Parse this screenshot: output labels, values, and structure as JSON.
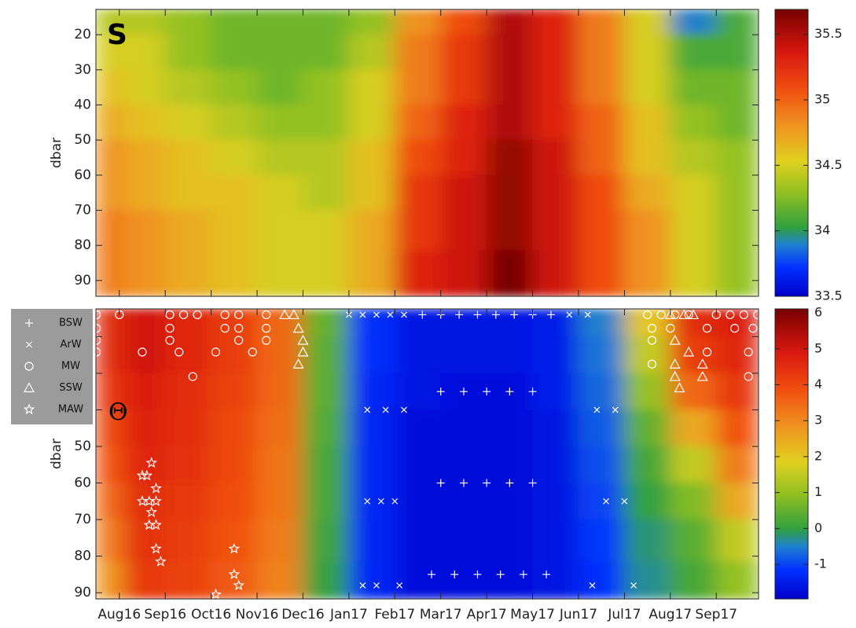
{
  "chart_data": [
    {
      "type": "heatmap",
      "title": "S",
      "ylabel": "dbar",
      "x": [
        -0.25,
        0.5,
        1.5,
        2.5,
        3.5,
        4.5,
        5.5,
        6.5,
        7.5,
        8.5,
        9.5,
        10.5,
        11.5,
        12.5,
        13.5
      ],
      "depth": [
        15,
        25,
        35,
        45,
        55,
        65,
        75,
        88
      ],
      "values": [
        [
          34.4,
          34.4,
          34.3,
          34.2,
          34.2,
          34.2,
          34.3,
          34.8,
          35.1,
          35.5,
          35.3,
          34.9,
          34.5,
          33.9,
          34.1
        ],
        [
          34.5,
          34.5,
          34.3,
          34.2,
          34.2,
          34.2,
          34.4,
          34.9,
          35.2,
          35.5,
          35.3,
          34.9,
          34.5,
          34.1,
          34.1
        ],
        [
          34.6,
          34.5,
          34.4,
          34.3,
          34.2,
          34.3,
          34.5,
          34.9,
          35.2,
          35.5,
          35.3,
          34.9,
          34.5,
          34.2,
          34.2
        ],
        [
          34.7,
          34.6,
          34.5,
          34.4,
          34.3,
          34.3,
          34.5,
          35.0,
          35.3,
          35.5,
          35.3,
          35.0,
          34.6,
          34.3,
          34.2
        ],
        [
          34.8,
          34.7,
          34.6,
          34.5,
          34.4,
          34.4,
          34.6,
          35.1,
          35.3,
          35.6,
          35.4,
          35.0,
          34.6,
          34.4,
          34.3
        ],
        [
          34.8,
          34.7,
          34.6,
          34.6,
          34.5,
          34.4,
          34.6,
          35.2,
          35.4,
          35.6,
          35.4,
          35.1,
          34.7,
          34.5,
          34.3
        ],
        [
          34.9,
          34.8,
          34.7,
          34.6,
          34.5,
          34.5,
          34.7,
          35.2,
          35.4,
          35.6,
          35.4,
          35.1,
          34.8,
          34.5,
          34.3
        ],
        [
          34.9,
          34.8,
          34.7,
          34.6,
          34.5,
          34.5,
          34.7,
          35.3,
          35.4,
          35.7,
          35.4,
          35.1,
          34.8,
          34.5,
          34.3
        ]
      ],
      "xlim": [
        -0.51,
        13.92
      ],
      "xticks": [
        0,
        1,
        2,
        3,
        4,
        5,
        6,
        7,
        8,
        9,
        10,
        11,
        12,
        13
      ],
      "ylim": [
        12.8,
        94.5
      ],
      "y_reversed": true,
      "yticks": [
        20,
        30,
        40,
        50,
        60,
        70,
        80,
        90
      ],
      "colorbar_lim": [
        33.5,
        35.69
      ],
      "colorbar_ticks": [
        33.5,
        34,
        34.5,
        35,
        35.5
      ],
      "colormap": [
        [
          0,
          "#0000c8"
        ],
        [
          0.1,
          "#0030ff"
        ],
        [
          0.18,
          "#2080d0"
        ],
        [
          0.24,
          "#30a040"
        ],
        [
          0.36,
          "#90c020"
        ],
        [
          0.47,
          "#e0d020"
        ],
        [
          0.6,
          "#f09020"
        ],
        [
          0.72,
          "#f05010"
        ],
        [
          0.85,
          "#d81810"
        ],
        [
          1,
          "#780000"
        ]
      ]
    },
    {
      "type": "heatmap",
      "title": "Θ",
      "ylabel": "dbar",
      "x": [
        -0.25,
        0.5,
        1.5,
        2.5,
        3.5,
        4.5,
        5.5,
        6.5,
        7.5,
        8.5,
        9.5,
        10.5,
        11.5,
        12.5,
        13.5
      ],
      "depth": [
        15,
        25,
        35,
        45,
        55,
        65,
        75,
        88
      ],
      "values": [
        [
          4.5,
          5.0,
          4.6,
          4.2,
          3.5,
          0.5,
          -1.2,
          -1.6,
          -1.6,
          -1.6,
          -1.5,
          -0.5,
          2.0,
          4.5,
          4.8
        ],
        [
          4.5,
          5.0,
          4.6,
          4.2,
          3.5,
          0.4,
          -1.2,
          -1.6,
          -1.6,
          -1.6,
          -1.5,
          -0.6,
          1.5,
          4.2,
          4.6
        ],
        [
          4.3,
          4.8,
          4.5,
          4.1,
          3.5,
          0.4,
          -1.3,
          -1.6,
          -1.7,
          -1.7,
          -1.5,
          -0.7,
          1.0,
          3.5,
          4.3
        ],
        [
          4.0,
          4.7,
          4.5,
          4.0,
          3.4,
          0.3,
          -1.3,
          -1.7,
          -1.7,
          -1.7,
          -1.6,
          -0.8,
          0.5,
          2.5,
          3.8
        ],
        [
          3.8,
          4.6,
          4.4,
          4.0,
          3.3,
          0.2,
          -1.3,
          -1.7,
          -1.7,
          -1.7,
          -1.6,
          -0.9,
          0.2,
          1.5,
          3.2
        ],
        [
          3.5,
          4.5,
          4.3,
          3.9,
          3.3,
          0.2,
          -1.3,
          -1.7,
          -1.7,
          -1.7,
          -1.6,
          -1.0,
          0.0,
          0.8,
          2.5
        ],
        [
          3.2,
          4.4,
          4.2,
          3.8,
          3.2,
          0.1,
          -1.3,
          -1.7,
          -1.7,
          -1.7,
          -1.6,
          -1.1,
          -0.2,
          0.4,
          1.5
        ],
        [
          2.8,
          4.3,
          4.1,
          3.7,
          3.1,
          0.0,
          -1.3,
          -1.7,
          -1.7,
          -1.7,
          -1.6,
          -1.2,
          -0.3,
          0.2,
          1.0
        ]
      ],
      "xlim": [
        -0.51,
        13.92
      ],
      "xticks": [
        {
          "value": 0,
          "label": "Aug16"
        },
        {
          "value": 1,
          "label": "Sep16"
        },
        {
          "value": 2,
          "label": "Oct16"
        },
        {
          "value": 3,
          "label": "Nov16"
        },
        {
          "value": 4,
          "label": "Dec16"
        },
        {
          "value": 5,
          "label": "Jan17"
        },
        {
          "value": 6,
          "label": "Feb17"
        },
        {
          "value": 7,
          "label": "Mar17"
        },
        {
          "value": 8,
          "label": "Apr17"
        },
        {
          "value": 9,
          "label": "May17"
        },
        {
          "value": 10,
          "label": "Jun17"
        },
        {
          "value": 11,
          "label": "Jul17"
        },
        {
          "value": 12,
          "label": "Aug17"
        },
        {
          "value": 13,
          "label": "Sep17"
        }
      ],
      "ylim": [
        12.4,
        91.7
      ],
      "y_reversed": true,
      "yticks": [
        20,
        30,
        40,
        50,
        60,
        70,
        80,
        90
      ],
      "colorbar_lim": [
        -1.96,
        6.11
      ],
      "colorbar_ticks": [
        -1,
        0,
        1,
        2,
        3,
        4,
        5,
        6
      ],
      "colormap": [
        [
          0,
          "#0000c8"
        ],
        [
          0.1,
          "#0030ff"
        ],
        [
          0.18,
          "#2080d0"
        ],
        [
          0.24,
          "#30a040"
        ],
        [
          0.36,
          "#90c020"
        ],
        [
          0.47,
          "#e0d020"
        ],
        [
          0.6,
          "#f09020"
        ],
        [
          0.72,
          "#f05010"
        ],
        [
          0.85,
          "#d81810"
        ],
        [
          1,
          "#780000"
        ]
      ],
      "legend": "left",
      "series": [
        {
          "name": "BSW",
          "marker": "plus",
          "color": "#ffffff",
          "x": [
            6.6,
            7.0,
            7.4,
            7.8,
            8.2,
            8.6,
            9.0,
            9.4,
            7.0,
            7.5,
            8.0,
            8.5,
            9.0,
            7.0,
            7.5,
            8.0,
            8.5,
            9.0,
            6.8,
            7.3,
            7.8,
            8.3,
            8.8,
            9.3
          ],
          "y": [
            14,
            14,
            14,
            14,
            14,
            14,
            14,
            14,
            35,
            35,
            35,
            35,
            35,
            60,
            60,
            60,
            60,
            60,
            85,
            85,
            85,
            85,
            85,
            85
          ]
        },
        {
          "name": "ArW",
          "marker": "cross",
          "color": "#ffffff",
          "x": [
            5.0,
            5.3,
            5.6,
            5.9,
            6.2,
            9.8,
            10.2,
            5.4,
            5.8,
            6.2,
            10.4,
            10.8,
            5.4,
            5.7,
            6.0,
            10.6,
            11.0,
            5.3,
            5.6,
            6.1,
            10.3,
            11.2
          ],
          "y": [
            14,
            14,
            14,
            14,
            14,
            14,
            14,
            40,
            40,
            40,
            40,
            40,
            65,
            65,
            65,
            65,
            65,
            88,
            88,
            88,
            88,
            88
          ]
        },
        {
          "name": "MW",
          "marker": "circle",
          "color": "#ffffff",
          "x": [
            -0.5,
            0.0,
            1.1,
            1.4,
            1.7,
            2.3,
            2.6,
            3.2,
            -0.5,
            1.1,
            2.3,
            2.6,
            3.2,
            -0.5,
            1.1,
            2.6,
            3.2,
            -0.5,
            0.5,
            1.3,
            2.1,
            2.9,
            1.6,
            11.5,
            11.8,
            12.1,
            12.4,
            13.0,
            13.3,
            13.6,
            13.9,
            11.6,
            12.0,
            12.8,
            13.4,
            13.8,
            11.6,
            12.8,
            13.7,
            11.6,
            13.7
          ],
          "y": [
            14,
            14,
            14,
            14,
            14,
            14,
            14,
            14,
            17.7,
            17.7,
            17.7,
            17.7,
            17.7,
            21,
            21,
            21,
            21,
            24.2,
            24.2,
            24.2,
            24.2,
            24.2,
            30.9,
            14,
            14,
            14,
            14,
            14,
            14,
            14,
            14,
            17.7,
            17.7,
            17.7,
            17.7,
            17.7,
            21,
            24.2,
            24.2,
            27.5,
            30.9
          ]
        },
        {
          "name": "SSW",
          "marker": "triangle",
          "color": "#ffffff",
          "x": [
            3.6,
            3.8,
            3.9,
            4.0,
            4.0,
            3.9,
            12.0,
            12.3,
            12.5,
            12.1,
            12.4,
            12.1,
            12.7,
            12.1,
            12.7,
            12.2
          ],
          "y": [
            14,
            14,
            17.7,
            21,
            24.2,
            27.5,
            14,
            14,
            14,
            21,
            24.2,
            27.5,
            27.5,
            30.9,
            30.9,
            34
          ]
        },
        {
          "name": "MAW",
          "marker": "star",
          "color": "#ffffff",
          "x": [
            0.7,
            0.5,
            0.6,
            0.8,
            0.5,
            0.65,
            0.8,
            0.7,
            0.65,
            0.8,
            0.8,
            0.9,
            2.5,
            2.5,
            2.6,
            2.1
          ],
          "y": [
            54.5,
            58,
            58,
            61.5,
            65,
            65,
            65,
            68,
            71.5,
            71.5,
            78,
            81.5,
            78,
            85,
            88,
            90.5
          ]
        }
      ]
    }
  ]
}
